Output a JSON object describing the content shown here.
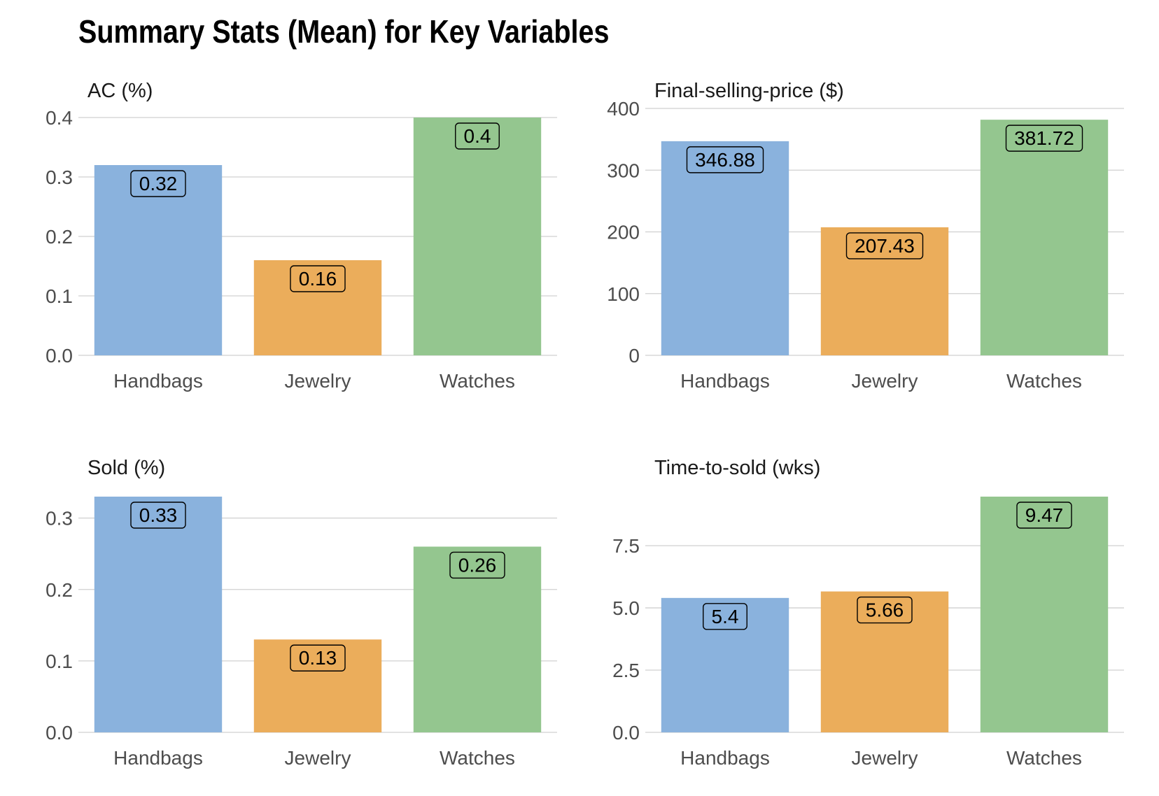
{
  "page_title": "Summary Stats (Mean) for Key Variables",
  "colors": {
    "Handbags": "#8AB2DD",
    "Jewelry": "#EBAD5B",
    "Watches": "#94C68F",
    "grid": "#d0d0d0"
  },
  "chart_data": [
    {
      "type": "bar",
      "title": "AC (%)",
      "categories": [
        "Handbags",
        "Jewelry",
        "Watches"
      ],
      "values": [
        0.32,
        0.16,
        0.4
      ],
      "value_labels": [
        "0.32",
        "0.16",
        "0.4"
      ],
      "ylim": [
        0,
        0.4
      ],
      "yticks": [
        0.0,
        0.1,
        0.2,
        0.3,
        0.4
      ],
      "ytick_labels": [
        "0.0",
        "0.1",
        "0.2",
        "0.3",
        "0.4"
      ],
      "grid": true
    },
    {
      "type": "bar",
      "title": "Final-selling-price ($)",
      "categories": [
        "Handbags",
        "Jewelry",
        "Watches"
      ],
      "values": [
        346.88,
        207.43,
        381.72
      ],
      "value_labels": [
        "346.88",
        "207.43",
        "381.72"
      ],
      "ylim": [
        0,
        400
      ],
      "yticks": [
        0,
        100,
        200,
        300,
        400
      ],
      "ytick_labels": [
        "0",
        "100",
        "200",
        "300",
        "400"
      ],
      "grid": true
    },
    {
      "type": "bar",
      "title": "Sold (%)",
      "categories": [
        "Handbags",
        "Jewelry",
        "Watches"
      ],
      "values": [
        0.33,
        0.13,
        0.26
      ],
      "value_labels": [
        "0.33",
        "0.13",
        "0.26"
      ],
      "ylim": [
        0,
        0.33
      ],
      "yticks": [
        0.0,
        0.1,
        0.2,
        0.3
      ],
      "ytick_labels": [
        "0.0",
        "0.1",
        "0.2",
        "0.3"
      ],
      "grid": true
    },
    {
      "type": "bar",
      "title": "Time-to-sold (wks)",
      "categories": [
        "Handbags",
        "Jewelry",
        "Watches"
      ],
      "values": [
        5.4,
        5.66,
        9.47
      ],
      "value_labels": [
        "5.4",
        "5.66",
        "9.47"
      ],
      "ylim": [
        0,
        9.47
      ],
      "yticks": [
        0.0,
        2.5,
        5.0,
        7.5
      ],
      "ytick_labels": [
        "0.0",
        "2.5",
        "5.0",
        "7.5"
      ],
      "grid": true
    }
  ]
}
